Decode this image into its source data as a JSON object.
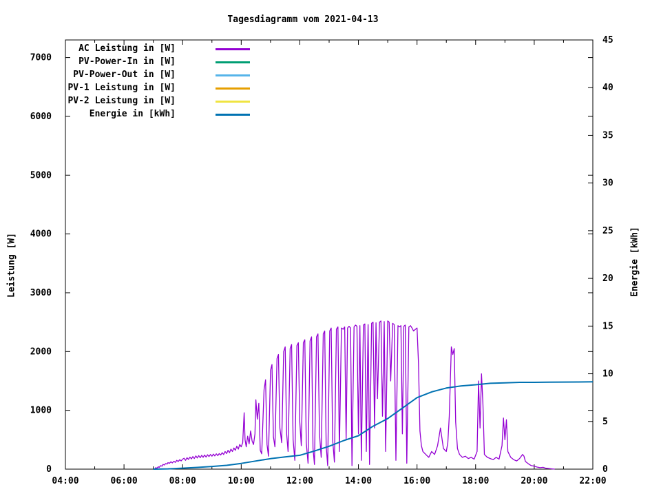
{
  "title": "Tagesdiagramm vom 2021-04-13",
  "axes": {
    "y_left_label": "Leistung [W]",
    "y_right_label": "Energie [kWh]"
  },
  "legend": [
    {
      "label": "AC Leistung in [W]"
    },
    {
      "label": "PV-Power-In in [W]"
    },
    {
      "label": "PV-Power-Out in [W]"
    },
    {
      "label": "PV-1 Leistung in [W]"
    },
    {
      "label": "PV-2 Leistung in [W]"
    },
    {
      "label": "Energie in [kWh]"
    }
  ],
  "chart_data": {
    "type": "line",
    "title": "Tagesdiagramm vom 2021-04-13",
    "xlabel": "",
    "x_axis": {
      "range_hours": [
        4,
        22
      ],
      "major_tick_labels": [
        "04:00",
        "06:00",
        "08:00",
        "10:00",
        "12:00",
        "14:00",
        "16:00",
        "18:00",
        "20:00",
        "22:00"
      ],
      "minor_ticks_every_hours": 1,
      "grid": false
    },
    "y_left": {
      "label": "Leistung [W]",
      "range": [
        0,
        7300
      ],
      "tick_values": [
        0,
        1000,
        2000,
        3000,
        4000,
        5000,
        6000,
        7000
      ]
    },
    "y_right": {
      "label": "Energie [kWh]",
      "range": [
        0,
        45
      ],
      "tick_values": [
        0,
        5,
        10,
        15,
        20,
        25,
        30,
        35,
        40,
        45
      ]
    },
    "legend_position": "top-left-inside",
    "series": [
      {
        "name": "AC Leistung in [W]",
        "color": "#9400d3",
        "axis": "left",
        "visible": true,
        "points": [
          [
            7.05,
            5
          ],
          [
            7.08,
            25
          ],
          [
            7.12,
            15
          ],
          [
            7.17,
            40
          ],
          [
            7.2,
            30
          ],
          [
            7.25,
            60
          ],
          [
            7.3,
            50
          ],
          [
            7.33,
            80
          ],
          [
            7.38,
            70
          ],
          [
            7.42,
            95
          ],
          [
            7.47,
            85
          ],
          [
            7.5,
            110
          ],
          [
            7.55,
            100
          ],
          [
            7.6,
            125
          ],
          [
            7.65,
            105
          ],
          [
            7.7,
            135
          ],
          [
            7.75,
            115
          ],
          [
            7.8,
            150
          ],
          [
            7.85,
            130
          ],
          [
            7.9,
            160
          ],
          [
            7.95,
            140
          ],
          [
            8.0,
            170
          ],
          [
            8.05,
            185
          ],
          [
            8.1,
            150
          ],
          [
            8.15,
            195
          ],
          [
            8.2,
            165
          ],
          [
            8.25,
            205
          ],
          [
            8.3,
            175
          ],
          [
            8.35,
            215
          ],
          [
            8.4,
            180
          ],
          [
            8.45,
            225
          ],
          [
            8.5,
            190
          ],
          [
            8.55,
            230
          ],
          [
            8.6,
            195
          ],
          [
            8.65,
            235
          ],
          [
            8.7,
            200
          ],
          [
            8.75,
            240
          ],
          [
            8.8,
            205
          ],
          [
            8.85,
            245
          ],
          [
            8.9,
            215
          ],
          [
            8.95,
            250
          ],
          [
            9.0,
            220
          ],
          [
            9.05,
            255
          ],
          [
            9.1,
            225
          ],
          [
            9.15,
            260
          ],
          [
            9.2,
            230
          ],
          [
            9.25,
            265
          ],
          [
            9.3,
            240
          ],
          [
            9.35,
            280
          ],
          [
            9.4,
            250
          ],
          [
            9.45,
            300
          ],
          [
            9.5,
            265
          ],
          [
            9.55,
            320
          ],
          [
            9.6,
            280
          ],
          [
            9.65,
            340
          ],
          [
            9.7,
            300
          ],
          [
            9.75,
            360
          ],
          [
            9.8,
            320
          ],
          [
            9.85,
            390
          ],
          [
            9.9,
            340
          ],
          [
            9.95,
            420
          ],
          [
            10.0,
            380
          ],
          [
            10.05,
            450
          ],
          [
            10.1,
            960
          ],
          [
            10.13,
            500
          ],
          [
            10.17,
            380
          ],
          [
            10.22,
            560
          ],
          [
            10.27,
            430
          ],
          [
            10.32,
            650
          ],
          [
            10.37,
            480
          ],
          [
            10.42,
            420
          ],
          [
            10.47,
            600
          ],
          [
            10.5,
            1180
          ],
          [
            10.55,
            850
          ],
          [
            10.6,
            1120
          ],
          [
            10.65,
            320
          ],
          [
            10.7,
            260
          ],
          [
            10.78,
            1350
          ],
          [
            10.83,
            1520
          ],
          [
            10.88,
            420
          ],
          [
            10.93,
            220
          ],
          [
            11.0,
            1680
          ],
          [
            11.05,
            1780
          ],
          [
            11.1,
            550
          ],
          [
            11.15,
            380
          ],
          [
            11.22,
            1880
          ],
          [
            11.27,
            1950
          ],
          [
            11.32,
            700
          ],
          [
            11.38,
            450
          ],
          [
            11.45,
            2000
          ],
          [
            11.5,
            2080
          ],
          [
            11.55,
            600
          ],
          [
            11.6,
            300
          ],
          [
            11.67,
            2050
          ],
          [
            11.72,
            2120
          ],
          [
            11.77,
            500
          ],
          [
            11.83,
            150
          ],
          [
            11.9,
            2100
          ],
          [
            11.95,
            2150
          ],
          [
            12.0,
            800
          ],
          [
            12.05,
            400
          ],
          [
            12.12,
            2150
          ],
          [
            12.17,
            2200
          ],
          [
            12.22,
            450
          ],
          [
            12.28,
            100
          ],
          [
            12.35,
            2180
          ],
          [
            12.4,
            2250
          ],
          [
            12.45,
            350
          ],
          [
            12.5,
            80
          ],
          [
            12.57,
            2250
          ],
          [
            12.62,
            2300
          ],
          [
            12.67,
            600
          ],
          [
            12.73,
            200
          ],
          [
            12.8,
            2300
          ],
          [
            12.85,
            2350
          ],
          [
            12.9,
            400
          ],
          [
            12.95,
            60
          ],
          [
            13.02,
            2350
          ],
          [
            13.07,
            2400
          ],
          [
            13.12,
            500
          ],
          [
            13.18,
            120
          ],
          [
            13.25,
            2380
          ],
          [
            13.3,
            2420
          ],
          [
            13.35,
            300
          ],
          [
            13.42,
            2400
          ],
          [
            13.48,
            2380
          ],
          [
            13.53,
            2420
          ],
          [
            13.58,
            500
          ],
          [
            13.63,
            2400
          ],
          [
            13.68,
            2430
          ],
          [
            13.73,
            2400
          ],
          [
            13.78,
            60
          ],
          [
            13.85,
            2420
          ],
          [
            13.9,
            2450
          ],
          [
            13.95,
            2430
          ],
          [
            14.0,
            600
          ],
          [
            14.05,
            2440
          ],
          [
            14.1,
            150
          ],
          [
            14.17,
            2450
          ],
          [
            14.22,
            2470
          ],
          [
            14.27,
            300
          ],
          [
            14.33,
            2460
          ],
          [
            14.38,
            80
          ],
          [
            14.45,
            2480
          ],
          [
            14.5,
            2500
          ],
          [
            14.55,
            700
          ],
          [
            14.6,
            2490
          ],
          [
            14.65,
            1200
          ],
          [
            14.72,
            2500
          ],
          [
            14.77,
            2520
          ],
          [
            14.82,
            900
          ],
          [
            14.88,
            2510
          ],
          [
            14.93,
            300
          ],
          [
            15.0,
            2520
          ],
          [
            15.05,
            2500
          ],
          [
            15.1,
            1500
          ],
          [
            15.17,
            2480
          ],
          [
            15.22,
            2460
          ],
          [
            15.28,
            150
          ],
          [
            15.35,
            2440
          ],
          [
            15.4,
            2420
          ],
          [
            15.45,
            2440
          ],
          [
            15.5,
            600
          ],
          [
            15.55,
            2430
          ],
          [
            15.6,
            2450
          ],
          [
            15.65,
            100
          ],
          [
            15.72,
            2420
          ],
          [
            15.78,
            2440
          ],
          [
            15.83,
            2400
          ],
          [
            15.88,
            2350
          ],
          [
            15.95,
            2380
          ],
          [
            16.0,
            2400
          ],
          [
            16.05,
            1800
          ],
          [
            16.1,
            650
          ],
          [
            16.15,
            400
          ],
          [
            16.2,
            300
          ],
          [
            16.3,
            250
          ],
          [
            16.4,
            200
          ],
          [
            16.5,
            300
          ],
          [
            16.6,
            250
          ],
          [
            16.7,
            400
          ],
          [
            16.8,
            700
          ],
          [
            16.9,
            350
          ],
          [
            17.0,
            300
          ],
          [
            17.05,
            450
          ],
          [
            17.1,
            900
          ],
          [
            17.17,
            2080
          ],
          [
            17.22,
            1950
          ],
          [
            17.27,
            2050
          ],
          [
            17.32,
            800
          ],
          [
            17.38,
            350
          ],
          [
            17.45,
            250
          ],
          [
            17.55,
            200
          ],
          [
            17.65,
            220
          ],
          [
            17.75,
            180
          ],
          [
            17.85,
            200
          ],
          [
            17.95,
            170
          ],
          [
            18.05,
            300
          ],
          [
            18.1,
            1500
          ],
          [
            18.15,
            700
          ],
          [
            18.2,
            1620
          ],
          [
            18.25,
            1100
          ],
          [
            18.3,
            250
          ],
          [
            18.4,
            200
          ],
          [
            18.5,
            180
          ],
          [
            18.6,
            160
          ],
          [
            18.7,
            200
          ],
          [
            18.8,
            170
          ],
          [
            18.9,
            400
          ],
          [
            18.95,
            870
          ],
          [
            19.0,
            500
          ],
          [
            19.05,
            840
          ],
          [
            19.1,
            300
          ],
          [
            19.2,
            200
          ],
          [
            19.3,
            160
          ],
          [
            19.4,
            140
          ],
          [
            19.5,
            180
          ],
          [
            19.6,
            250
          ],
          [
            19.65,
            220
          ],
          [
            19.7,
            130
          ],
          [
            19.8,
            90
          ],
          [
            19.9,
            60
          ],
          [
            20.0,
            50
          ],
          [
            20.1,
            35
          ],
          [
            20.2,
            25
          ],
          [
            20.3,
            30
          ],
          [
            20.4,
            15
          ],
          [
            20.5,
            10
          ],
          [
            20.6,
            5
          ],
          [
            20.7,
            0
          ]
        ]
      },
      {
        "name": "PV-Power-In in [W]",
        "color": "#009e73",
        "axis": "left",
        "visible": false,
        "points": []
      },
      {
        "name": "PV-Power-Out in [W]",
        "color": "#56b4e9",
        "axis": "left",
        "visible": false,
        "points": []
      },
      {
        "name": "PV-1 Leistung in [W]",
        "color": "#e69f00",
        "axis": "left",
        "visible": false,
        "points": []
      },
      {
        "name": "PV-2 Leistung in [W]",
        "color": "#f0e442",
        "axis": "left",
        "visible": false,
        "points": []
      },
      {
        "name": "Energie in [kWh]",
        "color": "#0072b2",
        "axis": "right",
        "visible": true,
        "points": [
          [
            7.0,
            0
          ],
          [
            7.5,
            0.03
          ],
          [
            8.0,
            0.1
          ],
          [
            8.5,
            0.18
          ],
          [
            9.0,
            0.28
          ],
          [
            9.5,
            0.4
          ],
          [
            10.0,
            0.6
          ],
          [
            10.5,
            0.85
          ],
          [
            11.0,
            1.1
          ],
          [
            11.5,
            1.28
          ],
          [
            12.0,
            1.45
          ],
          [
            12.5,
            1.9
          ],
          [
            13.0,
            2.4
          ],
          [
            13.5,
            3.0
          ],
          [
            14.0,
            3.5
          ],
          [
            14.5,
            4.5
          ],
          [
            15.0,
            5.3
          ],
          [
            15.5,
            6.4
          ],
          [
            16.0,
            7.5
          ],
          [
            16.5,
            8.1
          ],
          [
            17.0,
            8.5
          ],
          [
            17.5,
            8.72
          ],
          [
            18.0,
            8.85
          ],
          [
            18.5,
            9.0
          ],
          [
            19.0,
            9.05
          ],
          [
            19.5,
            9.1
          ],
          [
            20.0,
            9.1
          ],
          [
            20.5,
            9.12
          ],
          [
            21.0,
            9.13
          ],
          [
            21.5,
            9.14
          ],
          [
            22.0,
            9.15
          ]
        ]
      }
    ]
  }
}
